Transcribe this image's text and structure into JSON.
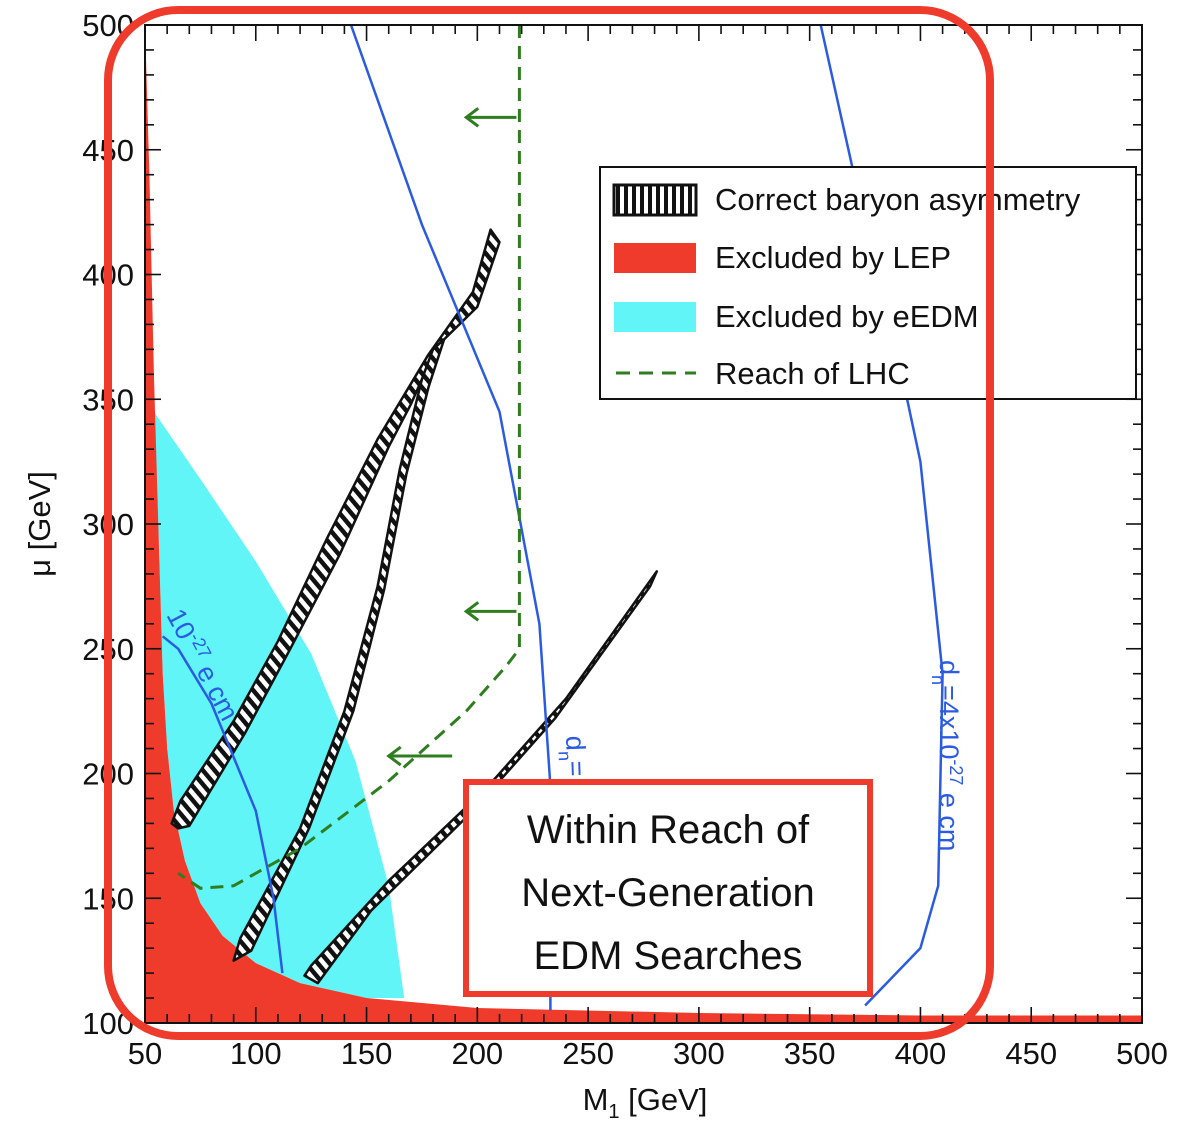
{
  "chart_data": {
    "type": "area",
    "xlabel": "M",
    "xlabel_sub": "1",
    "xlabel_unit": " [GeV]",
    "ylabel": "μ [GeV]",
    "xlim": [
      50,
      500
    ],
    "ylim": [
      100,
      500
    ],
    "x_ticks": [
      50,
      100,
      150,
      200,
      250,
      300,
      350,
      400,
      450,
      500
    ],
    "y_ticks": [
      100,
      150,
      200,
      250,
      300,
      350,
      400,
      450,
      500
    ],
    "legend_position": "top-right",
    "legend": [
      {
        "key": "baryon",
        "label": "Correct baryon asymmetry",
        "swatch": "hatched"
      },
      {
        "key": "lep",
        "label": "Excluded by LEP",
        "swatch": "#ee3b2b"
      },
      {
        "key": "eedm",
        "label": "Excluded by eEDM",
        "swatch": "#62f5f8"
      },
      {
        "key": "lhc",
        "label": "Reach of LHC",
        "swatch": "dashed-green"
      }
    ],
    "colors": {
      "lep": "#ee3b2b",
      "eedm": "#62f5f8",
      "edm_curve": "#2a5be0",
      "lhc": "#2e7d1e",
      "highlight": "#ee3b2b"
    },
    "lep_excluded": [
      [
        50,
        500
      ],
      [
        52,
        440
      ],
      [
        54,
        360
      ],
      [
        56,
        300
      ],
      [
        58,
        240
      ],
      [
        60,
        210
      ],
      [
        63,
        185
      ],
      [
        68,
        165
      ],
      [
        75,
        148
      ],
      [
        85,
        135
      ],
      [
        100,
        124
      ],
      [
        120,
        116
      ],
      [
        150,
        110
      ],
      [
        200,
        106
      ],
      [
        300,
        104
      ],
      [
        400,
        103
      ],
      [
        500,
        103
      ],
      [
        500,
        100
      ],
      [
        50,
        100
      ]
    ],
    "eedm_excluded": [
      [
        54,
        345
      ],
      [
        75,
        318
      ],
      [
        100,
        285
      ],
      [
        125,
        248
      ],
      [
        145,
        205
      ],
      [
        160,
        155
      ],
      [
        167,
        110
      ],
      [
        150,
        110
      ],
      [
        120,
        116
      ],
      [
        100,
        124
      ],
      [
        85,
        135
      ],
      [
        75,
        148
      ],
      [
        68,
        165
      ],
      [
        63,
        185
      ],
      [
        60,
        210
      ],
      [
        58,
        240
      ],
      [
        56,
        300
      ]
    ],
    "baryon_bands": [
      {
        "name": "band-1",
        "points": [
          [
            62,
            180
          ],
          [
            66,
            189
          ],
          [
            90,
            221
          ],
          [
            110,
            253
          ],
          [
            132,
            294
          ],
          [
            155,
            334
          ],
          [
            178,
            368
          ],
          [
            198,
            393
          ],
          [
            206,
            418
          ],
          [
            210,
            413
          ],
          [
            205,
            400
          ],
          [
            200,
            387
          ],
          [
            185,
            374
          ],
          [
            175,
            358
          ],
          [
            170,
            348
          ],
          [
            160,
            331
          ],
          [
            138,
            288
          ],
          [
            115,
            249
          ],
          [
            95,
            216
          ],
          [
            70,
            179
          ],
          [
            65,
            178
          ]
        ]
      },
      {
        "name": "band-2",
        "points": [
          [
            90,
            125
          ],
          [
            93,
            134
          ],
          [
            120,
            178
          ],
          [
            140,
            225
          ],
          [
            155,
            275
          ],
          [
            165,
            322
          ],
          [
            175,
            358
          ],
          [
            180,
            370
          ],
          [
            185,
            374
          ],
          [
            178,
            355
          ],
          [
            168,
            320
          ],
          [
            158,
            274
          ],
          [
            144,
            225
          ],
          [
            124,
            178
          ],
          [
            98,
            129
          ]
        ]
      },
      {
        "name": "band-3",
        "points": [
          [
            122,
            119
          ],
          [
            125,
            123
          ],
          [
            160,
            157
          ],
          [
            205,
            195
          ],
          [
            240,
            230
          ],
          [
            281,
            281
          ],
          [
            278,
            275
          ],
          [
            235,
            222
          ],
          [
            198,
            185
          ],
          [
            152,
            145
          ],
          [
            128,
            116
          ]
        ]
      }
    ],
    "edm_curves": [
      {
        "name": "de-1e-27",
        "points": [
          [
            58,
            255
          ],
          [
            65,
            250
          ],
          [
            80,
            228
          ],
          [
            100,
            185
          ],
          [
            108,
            150
          ],
          [
            112,
            120
          ]
        ]
      },
      {
        "name": "dn-left",
        "points": [
          [
            143,
            500
          ],
          [
            175,
            420
          ],
          [
            210,
            345
          ],
          [
            228,
            260
          ],
          [
            233,
            195
          ],
          [
            233,
            160
          ],
          [
            233,
            105
          ]
        ]
      },
      {
        "name": "dn-right",
        "points": [
          [
            355,
            500
          ],
          [
            370,
            440
          ],
          [
            382,
            400
          ],
          [
            400,
            325
          ],
          [
            410,
            240
          ],
          [
            408,
            155
          ],
          [
            400,
            130
          ],
          [
            375,
            107
          ]
        ]
      }
    ],
    "curve_labels": {
      "de_main": "10",
      "de_exp": "-27",
      "de_unit": " e cm",
      "dn_left_main": "d",
      "dn_left_sub": "n",
      "dn_left_eq": "=",
      "dn_right_main": "d",
      "dn_right_sub": "n",
      "dn_right_mid": "=4x10",
      "dn_right_exp": "-27",
      "dn_right_unit": " e cm"
    },
    "lhc_reach": [
      [
        219,
        500
      ],
      [
        219,
        250
      ],
      [
        213,
        243
      ],
      [
        195,
        225
      ],
      [
        160,
        197
      ],
      [
        120,
        170
      ],
      [
        90,
        155
      ],
      [
        75,
        154
      ],
      [
        65,
        160
      ]
    ],
    "lhc_arrows": [
      {
        "x": 219,
        "y": 463,
        "x_to": 195
      },
      {
        "x": 219,
        "y": 265,
        "x_to": 195
      },
      {
        "x": 190,
        "y": 207,
        "x_to": 160
      }
    ]
  },
  "callout": {
    "lines": [
      "Within Reach of",
      "Next-Generation",
      "EDM Searches"
    ]
  }
}
